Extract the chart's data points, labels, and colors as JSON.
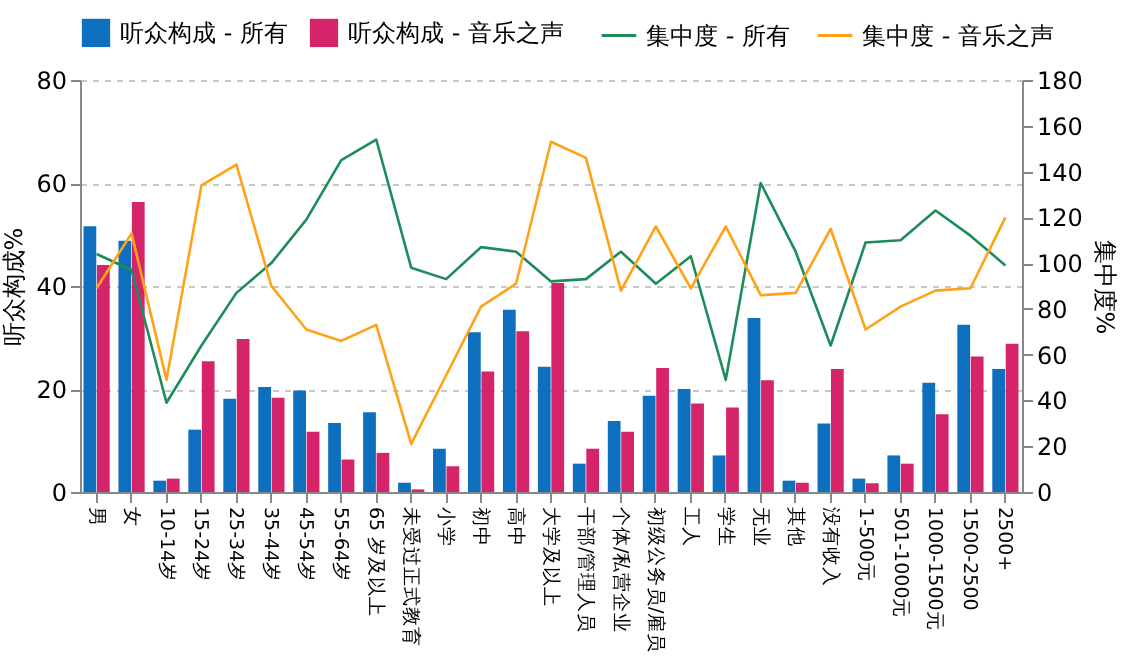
{
  "chart_data": {
    "type": "bar",
    "ylabel": "听众构成%",
    "y2label": "集中度%",
    "categories": [
      "男",
      "女",
      "10-14岁",
      "15-24岁",
      "25-34岁",
      "35-44岁",
      "45-54岁",
      "55-64岁",
      "65 岁及以上",
      "未受过正式教育",
      "小学",
      "初中",
      "高中",
      "大学及以上",
      "干部/管理人员",
      "个体/私营企业",
      "初级公务员/雇员",
      "工人",
      "学生",
      "无业",
      "其他",
      "没有收入",
      "1-500元",
      "501-1000元",
      "1000-1500元",
      "1500-2500",
      "2500+"
    ],
    "series": [
      {
        "name": "听众构成 - 所有",
        "color": "#0f6fbf",
        "values": [
          51.6,
          48.8,
          2.2,
          12.1,
          18.1,
          20.4,
          19.7,
          13.4,
          15.5,
          1.8,
          8.4,
          31.0,
          35.4,
          24.3,
          5.5,
          13.8,
          18.7,
          20.0,
          7.1,
          33.8,
          2.2,
          13.3,
          2.6,
          7.1,
          21.2,
          32.5,
          23.9
        ]
      },
      {
        "name": "听众构成 - 音乐之声",
        "color": "#d6246a",
        "values": [
          44.1,
          56.3,
          2.6,
          25.4,
          29.7,
          18.3,
          11.7,
          6.3,
          7.6,
          0.5,
          5.0,
          23.4,
          31.2,
          40.6,
          8.4,
          11.7,
          24.1,
          17.2,
          16.4,
          21.7,
          1.8,
          23.9,
          1.7,
          5.5,
          15.1,
          26.3,
          28.8
        ]
      },
      {
        "name": "集中度 - 所有",
        "type": "line",
        "axis": "y2",
        "color": "#1e8c5a",
        "values": [
          104,
          97,
          39,
          64,
          87,
          100,
          119,
          145,
          154,
          98,
          93,
          107,
          105,
          92,
          93,
          105,
          91,
          103,
          49,
          135,
          105,
          64,
          109,
          110,
          123,
          112,
          99
        ]
      },
      {
        "name": "集中度 - 音乐之声",
        "type": "line",
        "axis": "y2",
        "color": "#ffa21a",
        "values": [
          89,
          113,
          49,
          134,
          143,
          90,
          71,
          66,
          73,
          21,
          51,
          81,
          91,
          153,
          146,
          88,
          116,
          89,
          116,
          86,
          87,
          115,
          71,
          81,
          88,
          89,
          120
        ]
      }
    ],
    "ylim": [
      0,
      80
    ],
    "yticks": [
      0,
      20,
      40,
      60,
      80
    ],
    "y2lim": [
      0,
      180
    ],
    "y2ticks": [
      0,
      20,
      40,
      60,
      80,
      100,
      120,
      140,
      160,
      180
    ],
    "grid": "y",
    "legend": "top"
  }
}
